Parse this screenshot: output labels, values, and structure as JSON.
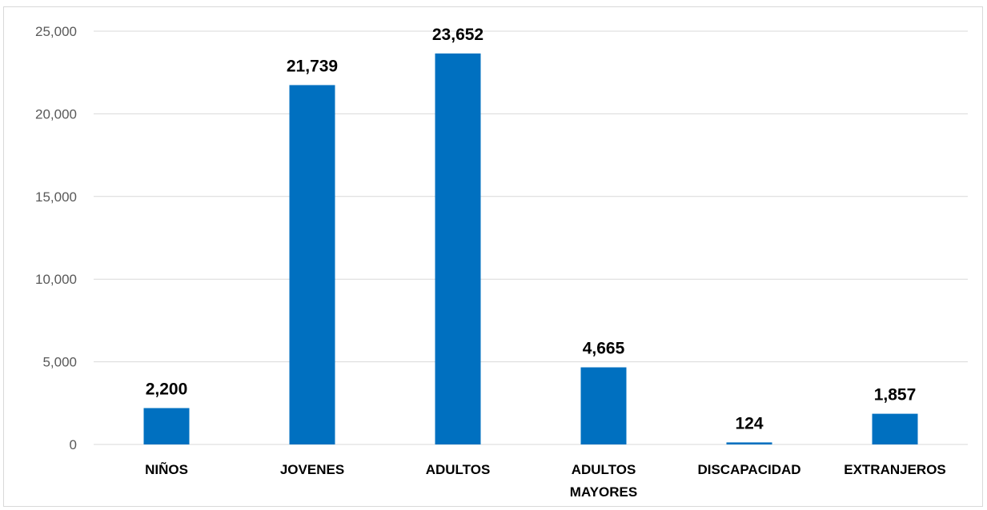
{
  "chart_data": {
    "type": "bar",
    "categories": [
      [
        "NIÑOS"
      ],
      [
        "JOVENES"
      ],
      [
        "ADULTOS"
      ],
      [
        "ADULTOS",
        "MAYORES"
      ],
      [
        "DISCAPACIDAD"
      ],
      [
        "EXTRANJEROS"
      ]
    ],
    "values": [
      2200,
      21739,
      23652,
      4665,
      124,
      1857
    ],
    "data_labels": [
      "2,200",
      "21,739",
      "23,652",
      "4,665",
      "124",
      "1,857"
    ],
    "ylim": [
      0,
      25000
    ],
    "yticks": [
      0,
      5000,
      10000,
      15000,
      20000,
      25000
    ],
    "ytick_labels": [
      "0",
      "5,000",
      "10,000",
      "15,000",
      "20,000",
      "25,000"
    ],
    "grid": true,
    "bar_color": "#0070C0",
    "grid_color": "#d9d9d9"
  }
}
